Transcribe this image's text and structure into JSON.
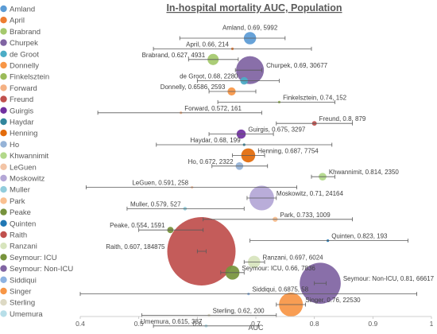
{
  "chart_data": {
    "type": "bubble",
    "title": "In-hospital mortality AUC, Population",
    "xlabel": "AUC",
    "ylabel": "",
    "xlim": [
      0.4,
      1.0
    ],
    "x_ticks": [
      "0.4",
      "0.5",
      "0.6",
      "0.7",
      "0.8",
      "0.9",
      "1"
    ],
    "grid": false,
    "legend_position": "left",
    "series": [
      {
        "name": "Amland",
        "color": "#5b9bd5",
        "auc": 0.69,
        "population": 5992,
        "ci": [
          0.57,
          0.75
        ],
        "label": "Amland, 0.69, 5992",
        "label_side": "top"
      },
      {
        "name": "April",
        "color": "#ed7d31",
        "auc": 0.66,
        "population": 214,
        "ci": [
          0.525,
          0.795
        ],
        "label": "April, 0.66, 214",
        "label_side": "left"
      },
      {
        "name": "Brabrand",
        "color": "#a5c96d",
        "auc": 0.627,
        "population": 4931,
        "ci": [
          0.585,
          0.67
        ],
        "label": "Brabrand, 0.627, 4931",
        "label_side": "left"
      },
      {
        "name": "Churpek",
        "color": "#8064a2",
        "auc": 0.69,
        "population": 30677,
        "ci": [
          0.665,
          0.71
        ],
        "label": "Churpek, 0.69, 30677",
        "label_side": "right"
      },
      {
        "name": "de Groot",
        "color": "#4bacc6",
        "auc": 0.68,
        "population": 2280,
        "ci": [
          0.6,
          0.74
        ],
        "label": "de Groot, 0.68, 2280",
        "label_side": "left"
      },
      {
        "name": "Donnelly",
        "color": "#f79646",
        "auc": 0.6586,
        "population": 2593,
        "ci": [
          0.62,
          0.7
        ],
        "label": "Donnelly, 0.6586, 2593",
        "label_side": "left"
      },
      {
        "name": "Finkelsztein",
        "color": "#9bbb59",
        "auc": 0.74,
        "population": 152,
        "ci": [
          0.635,
          0.835
        ],
        "label": "Finkelsztein, 0.74, 152",
        "label_side": "right"
      },
      {
        "name": "Forward",
        "color": "#f4b183",
        "auc": 0.572,
        "population": 161,
        "ci": [
          0.43,
          0.71
        ],
        "label": "Forward, 0.572, 161",
        "label_side": "right"
      },
      {
        "name": "Freund",
        "color": "#c0504d",
        "auc": 0.8,
        "population": 879,
        "ci": [
          0.735,
          0.865
        ],
        "label": "Freund, 0.8, 879",
        "label_side": "right"
      },
      {
        "name": "Guirgis",
        "color": "#7030a0",
        "auc": 0.675,
        "population": 3297,
        "ci": [
          0.62,
          0.73
        ],
        "label": "Guirgis, 0.675, 3297",
        "label_side": "right"
      },
      {
        "name": "Haydar",
        "color": "#31859c",
        "auc": 0.68,
        "population": 199,
        "ci": [
          0.53,
          0.83
        ],
        "label": "Haydar, 0.68, 199",
        "label_side": "left"
      },
      {
        "name": "Henning",
        "color": "#e26b0a",
        "auc": 0.687,
        "population": 7754,
        "ci": [
          0.66,
          0.715
        ],
        "label": "Henning, 0.687, 7754",
        "label_side": "right"
      },
      {
        "name": "Ho",
        "color": "#95b3d7",
        "auc": 0.672,
        "population": 2322,
        "ci": [
          0.625,
          0.72
        ],
        "label": "Ho, 0.672, 2322",
        "label_side": "left"
      },
      {
        "name": "Khwannimit",
        "color": "#b2d88a",
        "auc": 0.814,
        "population": 2350,
        "ci": [
          0.795,
          0.835
        ],
        "label": "Khwannimit, 0.814, 2350",
        "label_side": "right"
      },
      {
        "name": "LeGuen",
        "color": "#f2c4a6",
        "auc": 0.591,
        "population": 258,
        "ci": [
          0.41,
          0.77
        ],
        "label": "LeGuen, 0.591, 258",
        "label_side": "left"
      },
      {
        "name": "Moskowitz",
        "color": "#b4a7d6",
        "auc": 0.71,
        "population": 24164,
        "ci": [
          0.685,
          0.735
        ],
        "label": "Moskowitz, 0.71, 24164",
        "label_side": "right"
      },
      {
        "name": "Muller",
        "color": "#92cddc",
        "auc": 0.579,
        "population": 527,
        "ci": [
          0.48,
          0.68
        ],
        "label": "Muller, 0.579, 527",
        "label_side": "left"
      },
      {
        "name": "Park",
        "color": "#fac090",
        "auc": 0.733,
        "population": 1009,
        "ci": [
          0.61,
          0.865
        ],
        "label": "Park, 0.733, 1009",
        "label_side": "right"
      },
      {
        "name": "Peake",
        "color": "#76923c",
        "auc": 0.554,
        "population": 1591,
        "ci": [
          0.5,
          0.61
        ],
        "label": "Peake, 0.554, 1591",
        "label_side": "left"
      },
      {
        "name": "Quinten",
        "color": "#1f77b4",
        "auc": 0.823,
        "population": 193,
        "ci": [
          0.69,
          0.96
        ],
        "label": "Quinten, 0.823, 193",
        "label_side": "right"
      },
      {
        "name": "Raith",
        "color": "#c0504d",
        "auc": 0.607,
        "population": 184875,
        "ci": [
          0.6,
          0.615
        ],
        "label": "Raith, 0.607, 184875",
        "label_side": "left"
      },
      {
        "name": "Ranzani",
        "color": "#d7e4bd",
        "auc": 0.697,
        "population": 6024,
        "ci": [
          0.68,
          0.715
        ],
        "label": "Ranzani, 0.697, 6024",
        "label_side": "right"
      },
      {
        "name": "Seymour: ICU",
        "color": "#77933c",
        "auc": 0.66,
        "population": 7836,
        "ci": [
          0.64,
          0.68
        ],
        "label": "Seymour: ICU, 0.66, 7836",
        "label_side": "right"
      },
      {
        "name": "Seymour: Non-ICU",
        "color": "#8064a2",
        "auc": 0.81,
        "population": 66617,
        "ci": [
          0.8,
          0.82
        ],
        "label": "Seymour: Non-ICU, 0.81, 66617",
        "label_side": "right"
      },
      {
        "name": "Siddiqui",
        "color": "#8db3e2",
        "auc": 0.6875,
        "population": 58,
        "ci": [
          0.4,
          0.975
        ],
        "label": "Siddiqui, 0.6875, 58",
        "label_side": "right"
      },
      {
        "name": "Singer",
        "color": "#f79646",
        "auc": 0.76,
        "population": 22530,
        "ci": [
          0.735,
          0.785
        ],
        "label": "Singer, 0.76, 22530",
        "label_side": "right"
      },
      {
        "name": "Sterling",
        "color": "#ddd9c4",
        "auc": 0.62,
        "population": 200,
        "ci": [
          0.505,
          0.735
        ],
        "label": "Sterling, 0.62, 200",
        "label_side": "right"
      },
      {
        "name": "Umemura",
        "color": "#b7dee8",
        "auc": 0.615,
        "population": 387,
        "ci": [
          0.525,
          0.705
        ],
        "label": "Umemura, 0.615, 387",
        "label_side": "left"
      }
    ]
  }
}
